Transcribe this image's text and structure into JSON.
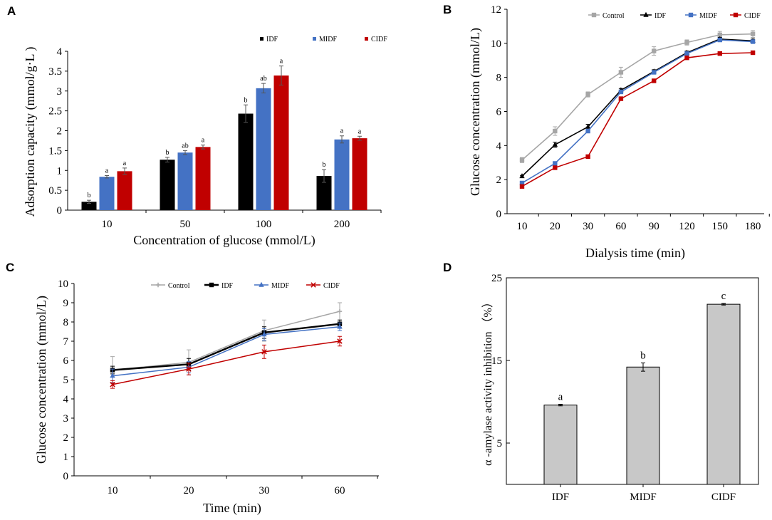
{
  "chart_data": [
    {
      "panel": "A",
      "type": "bar",
      "title": "",
      "xlabel": "Concentration of glucose (mmol/L)",
      "ylabel": "Adsorption capacity (mmol/g·L )",
      "ylim": [
        0,
        4
      ],
      "yticks": [
        "0",
        "0.5",
        "1",
        "1.5",
        "2",
        "2.5",
        "3",
        "3.5",
        "4"
      ],
      "categories": [
        "10",
        "50",
        "100",
        "200"
      ],
      "legend_position": "top-right",
      "series": [
        {
          "name": "IDF",
          "color": "#000000",
          "values": [
            0.21,
            1.27,
            2.43,
            0.86
          ],
          "errors": [
            0.04,
            0.06,
            0.22,
            0.16
          ],
          "labels": [
            "b",
            "b",
            "b",
            "b"
          ]
        },
        {
          "name": "MIDF",
          "color": "#4472C4",
          "values": [
            0.84,
            1.45,
            3.07,
            1.78
          ],
          "errors": [
            0.03,
            0.05,
            0.12,
            0.09
          ],
          "labels": [
            "a",
            "ab",
            "ab",
            "a"
          ]
        },
        {
          "name": "CIDF",
          "color": "#C00000",
          "values": [
            0.98,
            1.59,
            3.39,
            1.81
          ],
          "errors": [
            0.08,
            0.05,
            0.24,
            0.05
          ],
          "labels": [
            "a",
            "a",
            "a",
            "a"
          ]
        }
      ]
    },
    {
      "panel": "B",
      "type": "line",
      "title": "",
      "xlabel": "Dialysis time (min)",
      "ylabel": "Glucose concentration (mmol/L)",
      "ylim": [
        0,
        12
      ],
      "yticks": [
        "0",
        "2",
        "4",
        "6",
        "8",
        "10",
        "12"
      ],
      "categories": [
        "10",
        "20",
        "30",
        "60",
        "90",
        "120",
        "150",
        "180"
      ],
      "legend_position": "top",
      "series": [
        {
          "name": "Control",
          "color": "#A6A6A6",
          "marker": "square",
          "values": [
            3.15,
            4.85,
            7.0,
            8.3,
            9.55,
            10.05,
            10.5,
            10.55
          ],
          "errors": [
            0.15,
            0.25,
            0.15,
            0.3,
            0.25,
            0.15,
            0.2,
            0.2
          ]
        },
        {
          "name": "IDF",
          "color": "#000000",
          "marker": "triangle",
          "values": [
            2.2,
            4.05,
            5.1,
            7.25,
            8.35,
            9.45,
            10.25,
            10.15
          ],
          "errors": [
            0.05,
            0.15,
            0.15,
            0.1,
            0.1,
            0.1,
            0.1,
            0.1
          ]
        },
        {
          "name": "MIDF",
          "color": "#4472C4",
          "marker": "square",
          "values": [
            1.8,
            2.95,
            4.85,
            7.15,
            8.3,
            9.4,
            10.2,
            10.1
          ],
          "errors": [
            0.05,
            0.1,
            0.1,
            0.1,
            0.1,
            0.1,
            0.1,
            0.1
          ]
        },
        {
          "name": "CIDF",
          "color": "#C00000",
          "marker": "square",
          "values": [
            1.6,
            2.7,
            3.35,
            6.75,
            7.8,
            9.15,
            9.4,
            9.45
          ],
          "errors": [
            0.05,
            0.05,
            0.05,
            0.05,
            0.05,
            0.05,
            0.05,
            0.05
          ]
        }
      ]
    },
    {
      "panel": "C",
      "type": "line",
      "title": "",
      "xlabel": "Time (min)",
      "ylabel": "Glucose concentration (mmol/L)",
      "ylim": [
        0,
        10
      ],
      "yticks": [
        "0",
        "1",
        "2",
        "3",
        "4",
        "5",
        "6",
        "7",
        "8",
        "9",
        "10"
      ],
      "categories": [
        "10",
        "20",
        "30",
        "60"
      ],
      "legend_position": "top",
      "series": [
        {
          "name": "Control",
          "color": "#A6A6A6",
          "marker": "plus",
          "values": [
            5.5,
            5.9,
            7.55,
            8.55
          ],
          "errors": [
            0.7,
            0.65,
            0.55,
            0.45
          ]
        },
        {
          "name": "IDF",
          "color": "#000000",
          "marker": "square",
          "values": [
            5.5,
            5.8,
            7.45,
            7.9
          ],
          "errors": [
            0.2,
            0.3,
            0.3,
            0.2
          ]
        },
        {
          "name": "MIDF",
          "color": "#4472C4",
          "marker": "triangle",
          "values": [
            5.2,
            5.65,
            7.35,
            7.75
          ],
          "errors": [
            0.35,
            0.3,
            0.3,
            0.2
          ]
        },
        {
          "name": "CIDF",
          "color": "#C00000",
          "marker": "cross",
          "values": [
            4.75,
            5.55,
            6.45,
            7.0
          ],
          "errors": [
            0.2,
            0.3,
            0.35,
            0.25
          ]
        }
      ]
    },
    {
      "panel": "D",
      "type": "bar",
      "title": "",
      "xlabel": "",
      "ylabel": "α -amylase activity inhibition （%）",
      "ylim": [
        0,
        25
      ],
      "yticks": [
        "5",
        "15",
        "25"
      ],
      "categories": [
        "IDF",
        "MIDF",
        "CIDF"
      ],
      "series": [
        {
          "name": "α -amylase activity inhibition",
          "color": "#C8C8C8",
          "values": [
            9.6,
            14.2,
            21.8
          ],
          "errors": [
            0.1,
            0.5,
            0.1
          ],
          "labels": [
            "a",
            "b",
            "c"
          ]
        }
      ]
    }
  ]
}
